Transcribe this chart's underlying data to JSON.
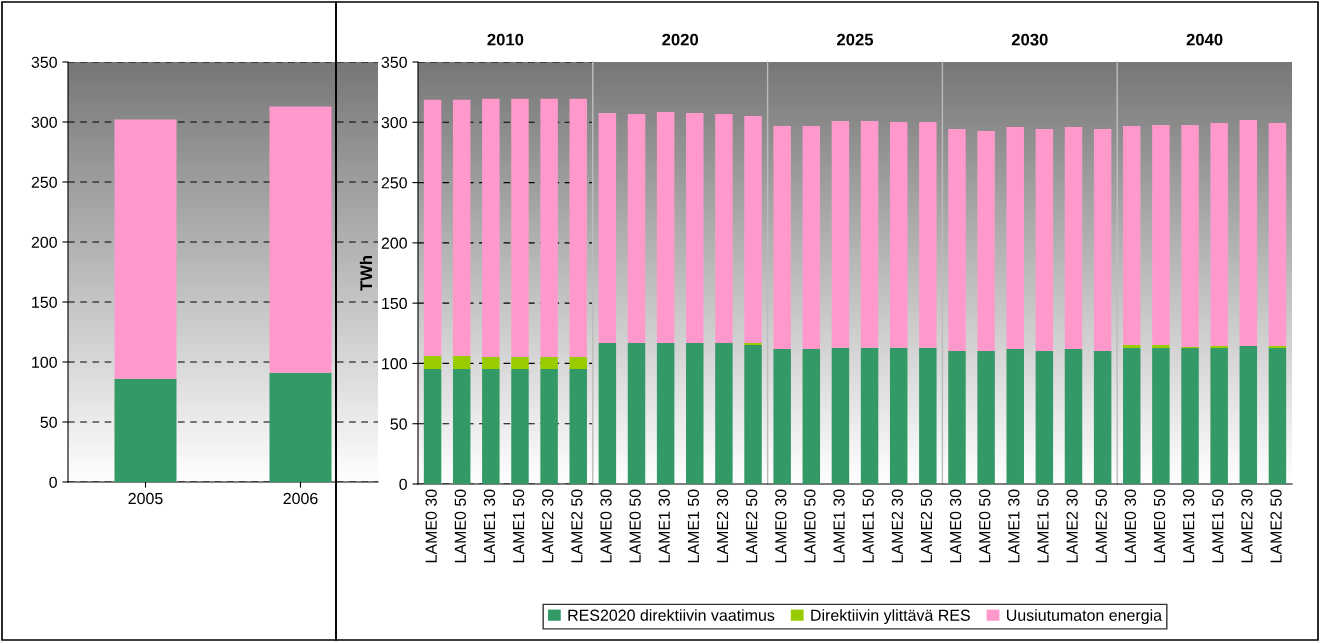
{
  "chart_data": [
    {
      "type": "bar",
      "stacked": true,
      "categories": [
        "2005",
        "2006"
      ],
      "ylim": [
        0,
        350
      ],
      "yticks": [
        0,
        50,
        100,
        150,
        200,
        250,
        300,
        350
      ],
      "grid": "y",
      "series": [
        {
          "color": "#339966",
          "values": [
            86,
            91
          ]
        },
        {
          "color": "#ff99cc",
          "values": [
            216,
            222
          ]
        }
      ]
    },
    {
      "type": "bar",
      "stacked": true,
      "title": "2010",
      "ylabel": "TWh",
      "categories": [
        "LAME0 30",
        "LAME0 50",
        "LAME1 30",
        "LAME1 50",
        "LAME2 30",
        "LAME2 50"
      ],
      "ylim": [
        0,
        350
      ],
      "yticks": [
        0,
        50,
        100,
        150,
        200,
        250,
        300,
        350
      ],
      "grid": "y",
      "legend": "bottom",
      "series": [
        {
          "name": "RES2020 direktiivin vaatimus",
          "color": "#339966",
          "values": [
            95.3,
            95.3,
            95.3,
            95.3,
            95.3,
            95.3
          ]
        },
        {
          "name": "Direktiivin ylittävä RES",
          "color": "#99cc00",
          "values": [
            10.8,
            10.8,
            10,
            10,
            10,
            10
          ]
        },
        {
          "name": "Uusiutumaton energia",
          "color": "#ff99cc",
          "values": [
            212.5,
            212.5,
            214.2,
            214.2,
            214.2,
            214.2
          ]
        }
      ]
    },
    {
      "type": "bar",
      "stacked": true,
      "title": "2020",
      "categories": [
        "LAME0 30",
        "LAME0 50",
        "LAME1 30",
        "LAME1 50",
        "LAME2 30",
        "LAME2 50"
      ],
      "ylim": [
        0,
        350
      ],
      "tick_labels": "x",
      "grid": "y",
      "series": [
        {
          "color": "#339966",
          "values": [
            117,
            117,
            117,
            117,
            117,
            115.3
          ]
        },
        {
          "color": "#99cc00",
          "values": [
            0,
            0,
            0,
            0,
            0,
            1.7
          ]
        },
        {
          "color": "#ff99cc",
          "values": [
            190.8,
            189.9,
            191.6,
            190.8,
            189.9,
            188.3
          ]
        }
      ]
    },
    {
      "type": "bar",
      "stacked": true,
      "title": "2025",
      "categories": [
        "LAME0 30",
        "LAME0 50",
        "LAME1 30",
        "LAME1 50",
        "LAME2 30",
        "LAME2 50"
      ],
      "ylim": [
        0,
        350
      ],
      "tick_labels": "x",
      "grid": "y",
      "series": [
        {
          "color": "#339966",
          "values": [
            112,
            112,
            113,
            113,
            113,
            113
          ]
        },
        {
          "color": "#ff99cc",
          "values": [
            185,
            185,
            188,
            188,
            187.3,
            187.3
          ]
        }
      ]
    },
    {
      "type": "bar",
      "stacked": true,
      "title": "2030",
      "categories": [
        "LAME0 30",
        "LAME0 50",
        "LAME1 30",
        "LAME1 50",
        "LAME2 30",
        "LAME2 50"
      ],
      "ylim": [
        0,
        350
      ],
      "tick_labels": "x",
      "grid": "y",
      "series": [
        {
          "color": "#339966",
          "values": [
            110.3,
            110.3,
            112,
            110.3,
            112,
            110.3
          ]
        },
        {
          "color": "#ff99cc",
          "values": [
            184.1,
            182.5,
            184.1,
            184.1,
            184.1,
            184.1
          ]
        }
      ]
    },
    {
      "type": "bar",
      "stacked": true,
      "title": "2040",
      "categories": [
        "LAME0 30",
        "LAME0 50",
        "LAME1 30",
        "LAME1 50",
        "LAME2 30",
        "LAME2 50"
      ],
      "ylim": [
        0,
        350
      ],
      "tick_labels": "x",
      "grid": "y",
      "series": [
        {
          "color": "#339966",
          "values": [
            112.8,
            112.8,
            112.8,
            112.8,
            114.4,
            112.8
          ]
        },
        {
          "color": "#99cc00",
          "values": [
            2.5,
            2.5,
            0.8,
            1.6,
            0,
            1.6
          ]
        },
        {
          "color": "#ff99cc",
          "values": [
            181.6,
            182.5,
            184.2,
            185,
            187.5,
            185
          ]
        }
      ]
    }
  ]
}
